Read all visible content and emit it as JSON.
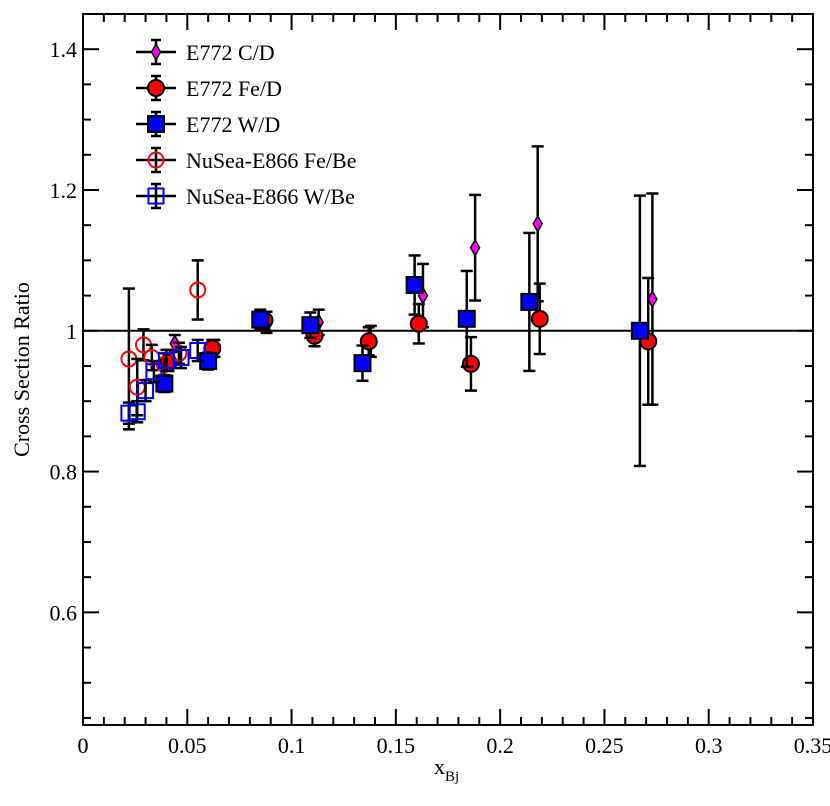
{
  "chart_data": {
    "type": "scatter",
    "title": "",
    "xlabel": "x",
    "xlabel_sub": "Bj",
    "ylabel": "Cross Section Ratio",
    "xlim": [
      0,
      0.35
    ],
    "ylim": [
      0.44,
      1.45
    ],
    "x_ticks": [
      {
        "value": 0,
        "label": "0"
      },
      {
        "value": 0.05,
        "label": "0.05"
      },
      {
        "value": 0.1,
        "label": "0.1"
      },
      {
        "value": 0.15,
        "label": "0.15"
      },
      {
        "value": 0.2,
        "label": "0.2"
      },
      {
        "value": 0.25,
        "label": "0.25"
      },
      {
        "value": 0.3,
        "label": "0.3"
      },
      {
        "value": 0.35,
        "label": "0.35"
      }
    ],
    "y_ticks": [
      {
        "value": 0.6,
        "label": "0.6"
      },
      {
        "value": 0.8,
        "label": "0.8"
      },
      {
        "value": 1.0,
        "label": "1"
      },
      {
        "value": 1.2,
        "label": "1.2"
      },
      {
        "value": 1.4,
        "label": "1.4"
      }
    ],
    "reference_line": 1.0,
    "legend_position": "top-left",
    "series": [
      {
        "name": "E772 C/D",
        "marker": "diamond",
        "filled": true,
        "color": "#ff00ff",
        "points": [
          {
            "x": 0.044,
            "y": 0.982,
            "err": 0.012
          },
          {
            "x": 0.063,
            "y": 0.975,
            "err": 0.012
          },
          {
            "x": 0.088,
            "y": 1.012,
            "err": 0.015
          },
          {
            "x": 0.113,
            "y": 1.012,
            "err": 0.018
          },
          {
            "x": 0.138,
            "y": 0.985,
            "err": 0.022
          },
          {
            "x": 0.163,
            "y": 1.05,
            "err": 0.045
          },
          {
            "x": 0.188,
            "y": 1.118,
            "err": 0.075
          },
          {
            "x": 0.218,
            "y": 1.152,
            "err": 0.11
          },
          {
            "x": 0.273,
            "y": 1.045,
            "err": 0.15
          }
        ]
      },
      {
        "name": "E772 Fe/D",
        "marker": "circle",
        "filled": true,
        "color": "#ff0000",
        "points": [
          {
            "x": 0.041,
            "y": 0.955,
            "err": 0.012
          },
          {
            "x": 0.062,
            "y": 0.975,
            "err": 0.012
          },
          {
            "x": 0.087,
            "y": 1.015,
            "err": 0.012
          },
          {
            "x": 0.111,
            "y": 0.993,
            "err": 0.015
          },
          {
            "x": 0.137,
            "y": 0.985,
            "err": 0.02
          },
          {
            "x": 0.161,
            "y": 1.01,
            "err": 0.028
          },
          {
            "x": 0.186,
            "y": 0.953,
            "err": 0.038
          },
          {
            "x": 0.219,
            "y": 1.017,
            "err": 0.05
          },
          {
            "x": 0.271,
            "y": 0.985,
            "err": 0.09
          }
        ]
      },
      {
        "name": "E772 W/D",
        "marker": "square",
        "filled": true,
        "color": "#0000ff",
        "points": [
          {
            "x": 0.039,
            "y": 0.925,
            "err": 0.012
          },
          {
            "x": 0.06,
            "y": 0.957,
            "err": 0.012
          },
          {
            "x": 0.085,
            "y": 1.016,
            "err": 0.014
          },
          {
            "x": 0.109,
            "y": 1.008,
            "err": 0.018
          },
          {
            "x": 0.134,
            "y": 0.954,
            "err": 0.025
          },
          {
            "x": 0.159,
            "y": 1.065,
            "err": 0.042
          },
          {
            "x": 0.184,
            "y": 1.017,
            "err": 0.068
          },
          {
            "x": 0.214,
            "y": 1.041,
            "err": 0.098
          },
          {
            "x": 0.267,
            "y": 1.0,
            "err": 0.192
          }
        ]
      },
      {
        "name": "NuSea-E866 Fe/Be",
        "marker": "circle",
        "filled": false,
        "color": "#ff0000",
        "points": [
          {
            "x": 0.022,
            "y": 0.96,
            "err": 0.1
          },
          {
            "x": 0.026,
            "y": 0.92,
            "err": 0.04
          },
          {
            "x": 0.029,
            "y": 0.98,
            "err": 0.022
          },
          {
            "x": 0.033,
            "y": 0.962,
            "err": 0.018
          },
          {
            "x": 0.039,
            "y": 0.952,
            "err": 0.016
          },
          {
            "x": 0.046,
            "y": 0.968,
            "err": 0.015
          },
          {
            "x": 0.055,
            "y": 1.058,
            "err": 0.042
          }
        ]
      },
      {
        "name": "NuSea-E866 W/Be",
        "marker": "square",
        "filled": false,
        "color": "#0000ff",
        "points": [
          {
            "x": 0.022,
            "y": 0.883,
            "err": 0.015
          },
          {
            "x": 0.026,
            "y": 0.885,
            "err": 0.015
          },
          {
            "x": 0.03,
            "y": 0.915,
            "err": 0.015
          },
          {
            "x": 0.034,
            "y": 0.942,
            "err": 0.015
          },
          {
            "x": 0.04,
            "y": 0.958,
            "err": 0.015
          },
          {
            "x": 0.047,
            "y": 0.962,
            "err": 0.015
          },
          {
            "x": 0.055,
            "y": 0.972,
            "err": 0.015
          }
        ]
      }
    ]
  }
}
